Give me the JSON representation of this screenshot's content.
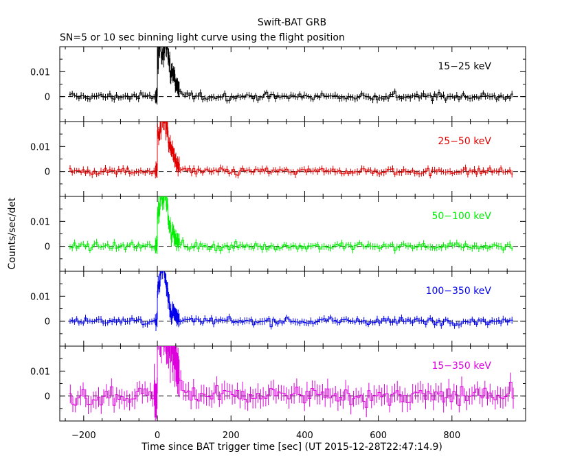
{
  "chart_data": {
    "type": "line",
    "title": "Swift-BAT GRB",
    "subtitle": "SN=5 or 10 sec binning light curve using the flight position",
    "xlabel": "Time since BAT trigger time [sec] (UT 2015-12-28T22:47:14.9)",
    "ylabel": "Counts/sec/det",
    "xlim": [
      -265,
      1000
    ],
    "ylim": [
      -0.01,
      0.02
    ],
    "x_ticks": [
      -200,
      0,
      200,
      400,
      600,
      800
    ],
    "x_tick_labels": [
      "−200",
      "0",
      "200",
      "400",
      "600",
      "800"
    ],
    "y_ticks": [
      0,
      0.01
    ],
    "y_tick_labels": [
      "0",
      "0.01"
    ],
    "zero_line": "dashed",
    "panels": [
      {
        "band": "15−25 keV",
        "color": "#000000",
        "noise": 0.0012,
        "peak": 0.022,
        "peak_width": 18
      },
      {
        "band": "25−50 keV",
        "color": "#e00000",
        "noise": 0.0012,
        "peak": 0.022,
        "peak_width": 16
      },
      {
        "band": "50−100 keV",
        "color": "#00ee00",
        "noise": 0.0012,
        "peak": 0.022,
        "peak_width": 14
      },
      {
        "band": "100−350 keV",
        "color": "#0000ee",
        "noise": 0.0012,
        "peak": 0.022,
        "peak_width": 12
      },
      {
        "band": "15−350 keV",
        "color": "#dd00dd",
        "noise": 0.0035,
        "peak": 0.03,
        "peak_width": 25
      }
    ]
  }
}
